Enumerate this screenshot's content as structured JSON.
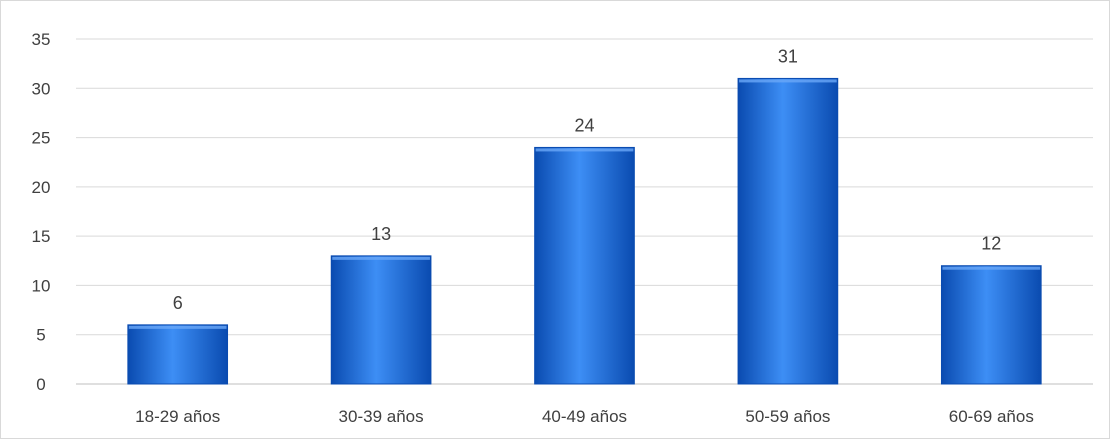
{
  "chart_data": {
    "type": "bar",
    "categories": [
      "18-29 años",
      "30-39 años",
      "40-49 años",
      "50-59 años",
      "60-69 años"
    ],
    "values": [
      6,
      13,
      24,
      31,
      12
    ],
    "ylim": [
      0,
      35
    ],
    "y_ticks": [
      0,
      5,
      10,
      15,
      20,
      25,
      30,
      35
    ],
    "grid": true,
    "data_labels": true,
    "bar_color": "#1565d8",
    "bar_color_light": "#3d8ef5",
    "bar_color_dark": "#0a4bb0"
  }
}
